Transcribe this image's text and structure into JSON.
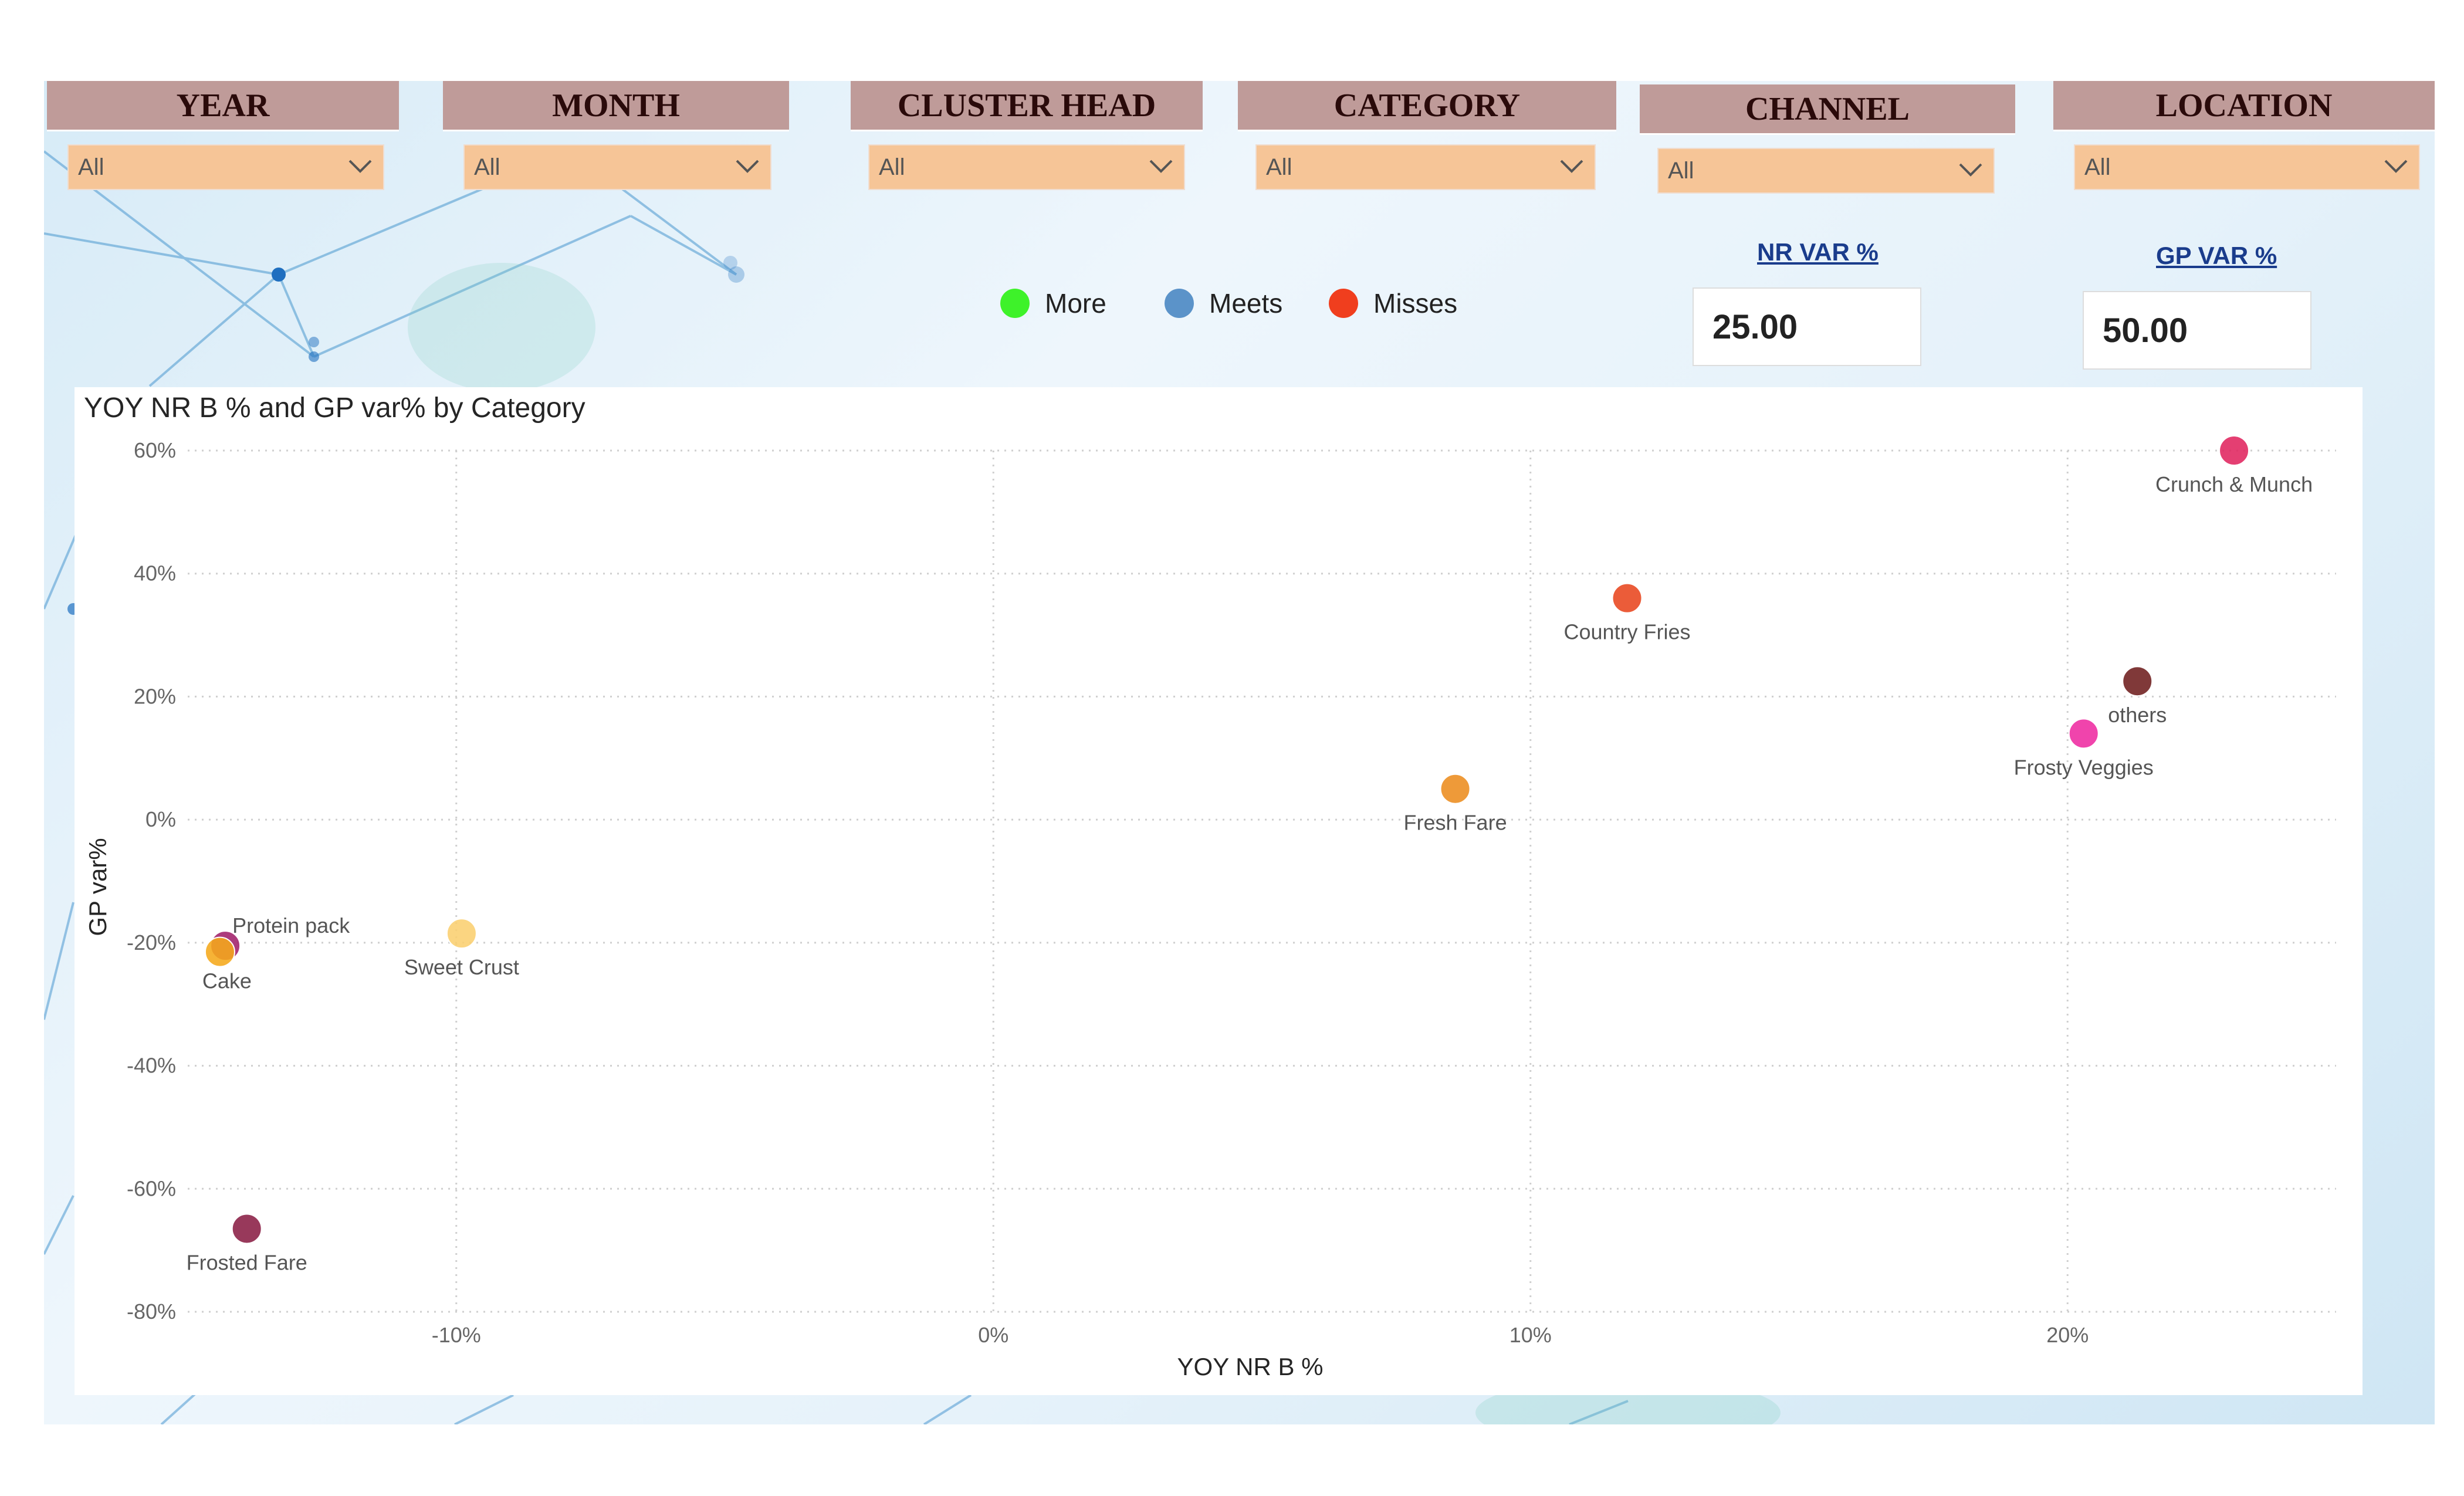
{
  "filters": [
    {
      "title": "YEAR",
      "value": "All"
    },
    {
      "title": "MONTH",
      "value": "All"
    },
    {
      "title": "CLUSTER HEAD",
      "value": "All"
    },
    {
      "title": "CATEGORY",
      "value": "All"
    },
    {
      "title": "CHANNEL",
      "value": "All"
    },
    {
      "title": "LOCATION",
      "value": "All"
    }
  ],
  "legend": [
    {
      "label": "More",
      "color": "#3ef22a"
    },
    {
      "label": "Meets",
      "color": "#5b93c9"
    },
    {
      "label": "Misses",
      "color": "#f03e1e"
    }
  ],
  "kpis": {
    "nr": {
      "label": "NR VAR %",
      "value": "25.00"
    },
    "gp": {
      "label": "GP VAR %",
      "value": "50.00"
    }
  },
  "chart_data": {
    "type": "scatter",
    "title": "YOY NR B % and GP var% by Category",
    "xlabel": "YOY NR B %",
    "ylabel": "GP var%",
    "xlim": [
      -15,
      25
    ],
    "ylim": [
      -80,
      60
    ],
    "xticks": [
      -10,
      0,
      10,
      20
    ],
    "yticks": [
      60,
      40,
      20,
      0,
      -20,
      -40,
      -60,
      -80
    ],
    "grid": true,
    "points": [
      {
        "label": "Crunch & Munch",
        "x": 23.1,
        "y": 60,
        "color": "#e0245e"
      },
      {
        "label": "Country Fries",
        "x": 11.8,
        "y": 36,
        "color": "#e8461e"
      },
      {
        "label": "others",
        "x": 21.3,
        "y": 22.5,
        "color": "#6e1e1e"
      },
      {
        "label": "Frosty Veggies",
        "x": 20.3,
        "y": 14,
        "color": "#ee2aa0"
      },
      {
        "label": "Fresh Fare",
        "x": 8.6,
        "y": 5,
        "color": "#ec8c1e"
      },
      {
        "label": "Protein pack",
        "x": -14.3,
        "y": -20.5,
        "color": "#a0206a"
      },
      {
        "label": "Cake",
        "x": -14.4,
        "y": -21.5,
        "color": "#f5a81a"
      },
      {
        "label": "Sweet Crust",
        "x": -9.9,
        "y": -18.5,
        "color": "#fbcf70"
      },
      {
        "label": "Frosted Fare",
        "x": -13.9,
        "y": -66.5,
        "color": "#8a1e44"
      }
    ]
  }
}
